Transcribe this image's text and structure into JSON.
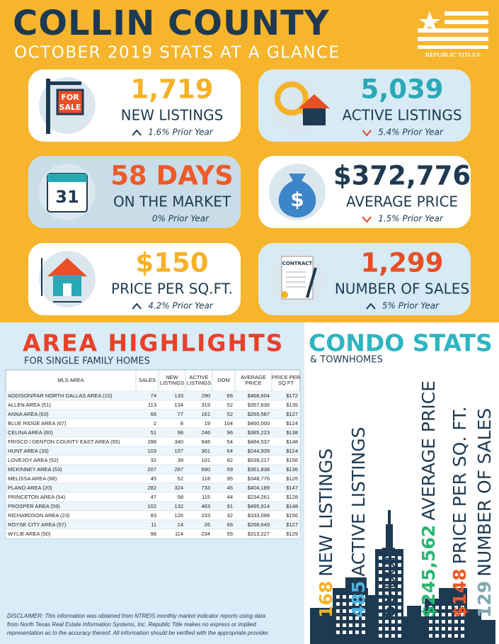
{
  "header": {
    "title": "COLLIN COUNTY",
    "subtitle": "OCTOBER 2019 STATS AT A GLANCE",
    "logo": "REPUBLIC TITLE®"
  },
  "cards": [
    {
      "value": "1,719",
      "label": "NEW LISTINGS",
      "change": "1.6% Prior Year",
      "direction": "up",
      "background": "#ffffff",
      "color": "#f5b229",
      "icon_text": [
        "FOR",
        "SALE"
      ]
    },
    {
      "value": "5,039",
      "label": "ACTIVE LISTINGS",
      "change": "5.4% Prior Year",
      "direction": "down",
      "background": "#d6ebf6",
      "color": "#29a8b6"
    },
    {
      "value": "58 DAYS",
      "label": "ON THE MARKET",
      "change": "0% Prior Year",
      "background": "#c8dde8",
      "color": "#f05a28",
      "icon_text": [
        "31"
      ]
    },
    {
      "value": "$372,776",
      "label": "AVERAGE PRICE",
      "change": "1.5% Prior Year",
      "direction": "down",
      "background": "#ffffff",
      "color": "#1e3a52",
      "icon_text": [
        "$"
      ]
    },
    {
      "value": "$150",
      "label": "PRICE PER SQ.FT.",
      "change": "4.2% Prior Year",
      "direction": "up",
      "background": "#ffffff",
      "color": "#f5b229"
    },
    {
      "value": "1,299",
      "label": "NUMBER OF SALES",
      "change": "5% Prior Year",
      "direction": "up",
      "background": "#d6ebf6",
      "color": "#e94e25",
      "icon_text": [
        "CONTRACT"
      ]
    }
  ],
  "area": {
    "title": "AREA HIGHLIGHTS",
    "subtitle": "FOR SINGLE FAMILY HOMES",
    "table": {
      "header": [
        "MLS AREA",
        "SALES",
        "NEW LISTINGS",
        "ACTIVE LISTINGS",
        "DOM",
        "AVERAGE PRICE",
        "PRICE PER SQ FT"
      ],
      "rows": [
        [
          "ADDISON/FAR NORTH DALLAS AREA (10)",
          74,
          133,
          290,
          66,
          "$468,604",
          "$172"
        ],
        [
          "ALLEN AREA (51)",
          113,
          134,
          319,
          52,
          "$357,636",
          "$135"
        ],
        [
          "ANNA AREA (63)",
          66,
          77,
          161,
          52,
          "$265,587",
          "$127"
        ],
        [
          "BLUE RIDGE AREA (67)",
          2,
          8,
          19,
          104,
          "$460,000",
          "$124"
        ],
        [
          "CELINA AREA (60)",
          51,
          98,
          246,
          96,
          "$385,223",
          "$138"
        ],
        [
          "FRISCO / DENTON COUNTY EAST AREA (55)",
          288,
          340,
          948,
          54,
          "$484,537",
          "$148"
        ],
        [
          "HUNT AREA (33)",
          103,
          157,
          301,
          64,
          "$244,939",
          "$124"
        ],
        [
          "LOVEJOY AREA (52)",
          32,
          39,
          101,
          82,
          "$539,217",
          "$156"
        ],
        [
          "MCKINNEY AREA (53)",
          207,
          287,
          690,
          59,
          "$351,838",
          "$136"
        ],
        [
          "MELISSA AREA (68)",
          45,
          52,
          118,
          95,
          "$348,776",
          "$126"
        ],
        [
          "PLANO AREA (20)",
          282,
          324,
          733,
          46,
          "$404,189",
          "$147"
        ],
        [
          "PRINCETON AREA (54)",
          47,
          58,
          115,
          44,
          "$234,261",
          "$128"
        ],
        [
          "PROSPER AREA (59)",
          102,
          132,
          463,
          91,
          "$495,914",
          "$148"
        ],
        [
          "RICHARDSON AREA (23)",
          83,
          126,
          233,
          32,
          "$333,098",
          "$156"
        ],
        [
          "ROYSE CITY AREA (57)",
          11,
          14,
          26,
          66,
          "$268,649",
          "$127"
        ],
        [
          "WYLIE AREA (50)",
          98,
          114,
          234,
          55,
          "$313,227",
          "$129"
        ]
      ]
    },
    "disclaimer": [
      "DISCLAIMER: This information was obtained from NTREIS monthly market indicator reports using data",
      "from North Texas Real Estate Information Systems, Inc.  Republic Title makes no express or implied",
      "representation as to the accuracy thereof.  All information should be verified with the appropriate provider."
    ]
  },
  "condo": {
    "title": "CONDO STATS",
    "subtitle": "& TOWNHOMES",
    "items": [
      {
        "value": "168",
        "label": "NEW LISTINGS",
        "color": "#f5b229"
      },
      {
        "value": "485",
        "label": "ACTIVE LISTINGS",
        "color": "#4fb3e0"
      },
      {
        "value": "68",
        "label": "DOM",
        "color": "#1e3a52"
      },
      {
        "value": "$245,562",
        "label": "AVERAGE PRICE",
        "color": "#2db573"
      },
      {
        "value": "$148",
        "label": "PRICE PER SQ. FT.",
        "color": "#f05a28"
      },
      {
        "value": "129",
        "label": "NUMBER OF SALES",
        "color": "#7fa7b0"
      }
    ]
  }
}
